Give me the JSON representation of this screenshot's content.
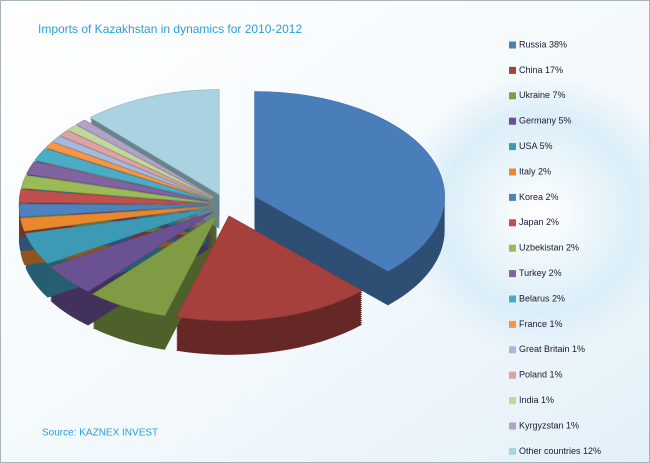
{
  "chart_data": {
    "type": "pie",
    "title": "Imports of Kazakhstan in dynamics for 2010-2012",
    "source": "Source: KAZNEX INVEST",
    "categories": [
      "Russia 38%",
      "China 17%",
      "Ukraine 7%",
      "Germany 5%",
      "USA 5%",
      "Italy 2%",
      "Korea 2%",
      "Japan 2%",
      "Uzbekistan 2%",
      "Turkey 2%",
      "Belarus 2%",
      "France 1%",
      "Great Britain 1%",
      "Poland 1%",
      "India 1%",
      "Kyrgyzstan 1%",
      "Other countries 12%"
    ],
    "values": [
      38,
      17,
      7,
      5,
      5,
      2,
      2,
      2,
      2,
      2,
      2,
      1,
      1,
      1,
      1,
      1,
      12
    ],
    "colors": [
      "#4a7ebb",
      "#a5403d",
      "#7f9c45",
      "#6a5192",
      "#3c9ab5",
      "#e8892e",
      "#4f81bd",
      "#c0504d",
      "#9bbb59",
      "#8064a2",
      "#4bacc6",
      "#f79646",
      "#a5b9dc",
      "#dca3a2",
      "#c3d69b",
      "#b3a2c7",
      "#a9d3e0"
    ],
    "legend": "right"
  }
}
